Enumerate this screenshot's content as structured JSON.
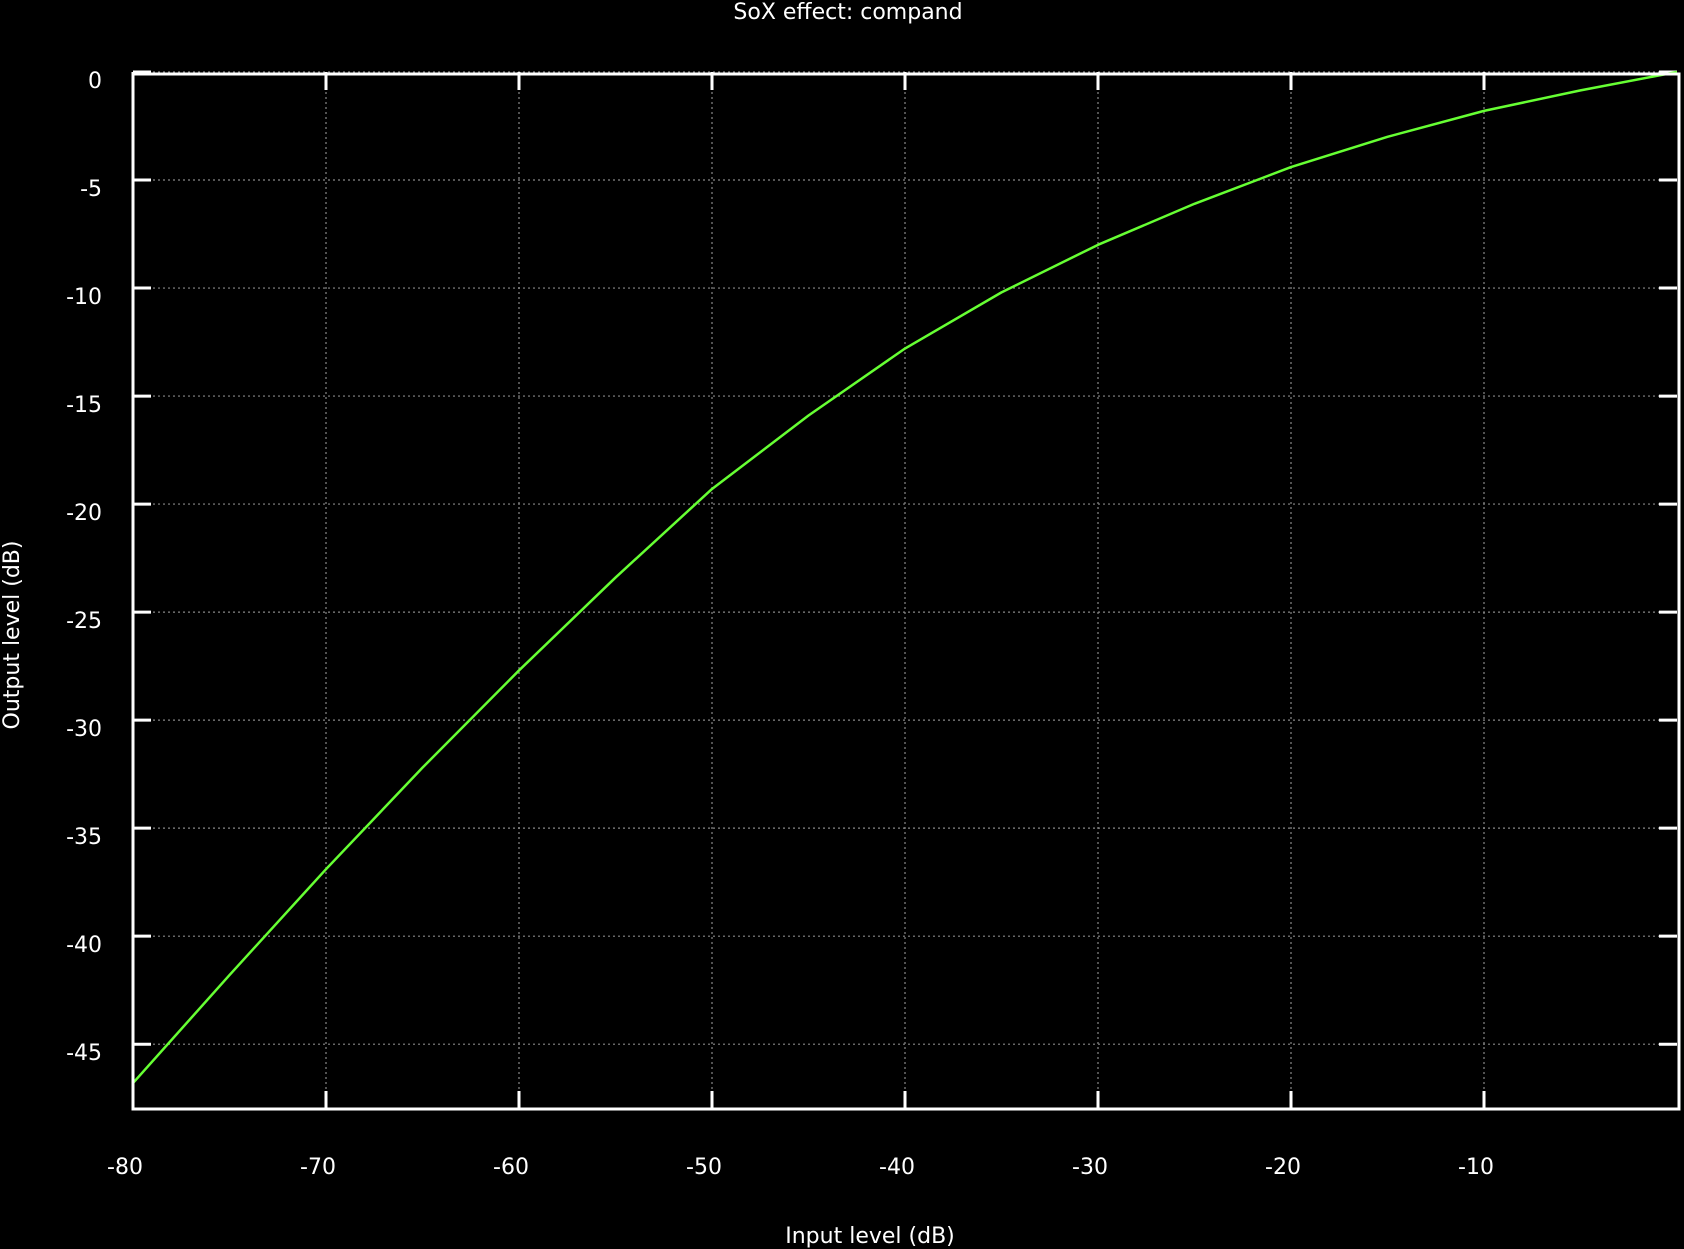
{
  "chart_data": {
    "type": "line",
    "title": "SoX effect: compand",
    "xlabel": "Input level (dB)",
    "ylabel": "Output level (dB)",
    "xlim": [
      -80,
      0
    ],
    "ylim": [
      -48,
      0
    ],
    "grid": true,
    "x_ticks": [
      -80,
      -70,
      -60,
      -50,
      -40,
      -30,
      -20,
      -10
    ],
    "y_ticks": [
      0,
      -5,
      -10,
      -15,
      -20,
      -25,
      -30,
      -35,
      -40,
      -45
    ],
    "series": [
      {
        "color": "#66ff33",
        "x": [
          -80,
          -75,
          -70,
          -65,
          -60,
          -55,
          -50,
          -45,
          -40,
          -35,
          -30,
          -25,
          -20,
          -15,
          -10,
          -5,
          0
        ],
        "y": [
          -46.8,
          -41.8,
          -36.9,
          -32.2,
          -27.7,
          -23.4,
          -19.3,
          -15.9,
          -12.8,
          -10.2,
          -8.0,
          -6.1,
          -4.4,
          -3.0,
          -1.8,
          -0.85,
          0
        ]
      }
    ]
  }
}
